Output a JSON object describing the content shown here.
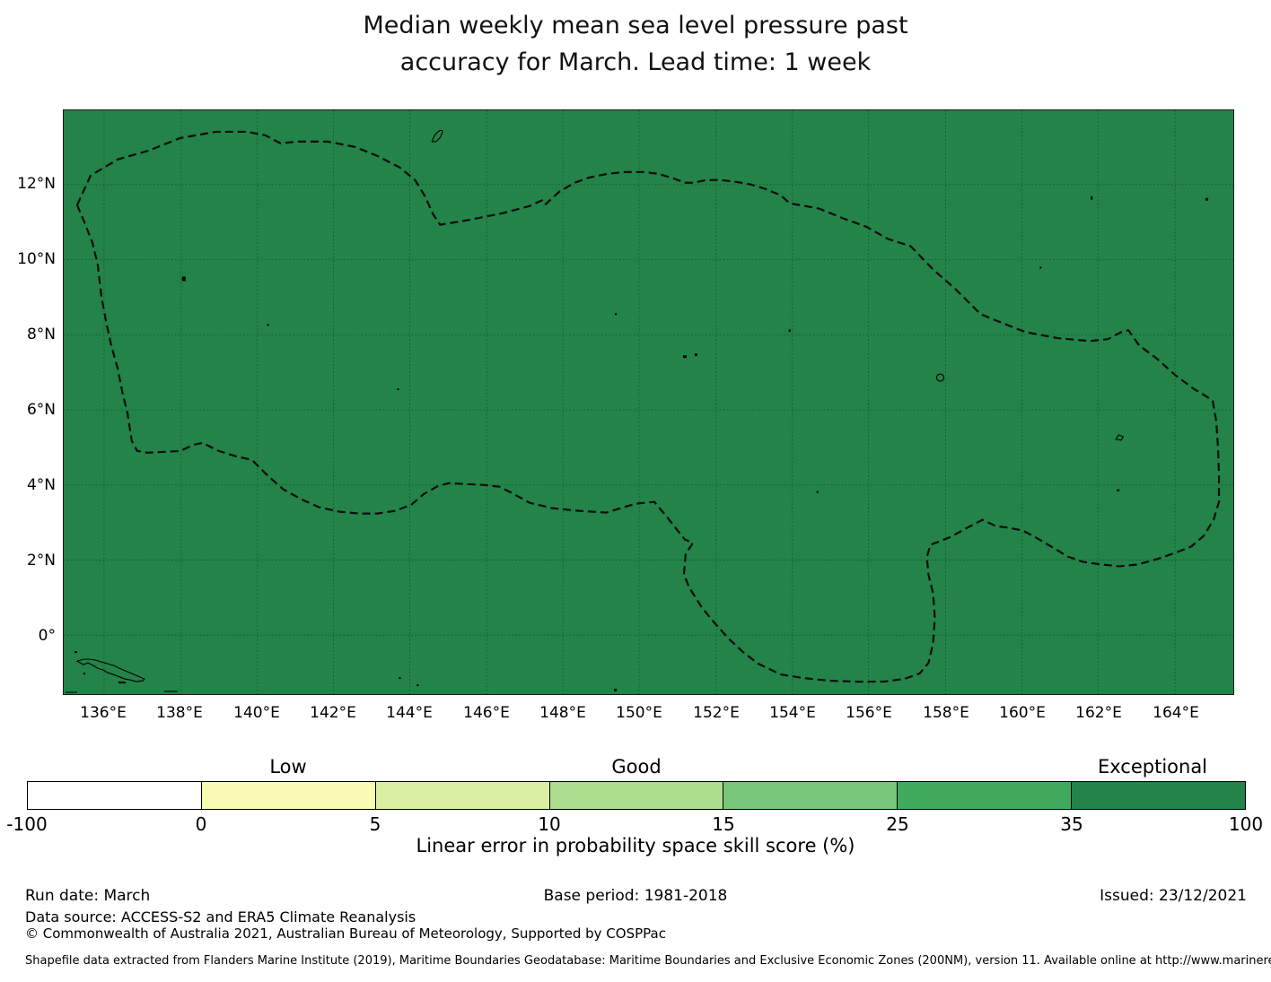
{
  "title": {
    "line1": "Median weekly mean sea level pressure past",
    "line2": "accuracy for March. Lead time: 1 week"
  },
  "map": {
    "x_tick_labels": [
      "136°E",
      "138°E",
      "140°E",
      "142°E",
      "144°E",
      "146°E",
      "148°E",
      "150°E",
      "152°E",
      "154°E",
      "156°E",
      "158°E",
      "160°E",
      "162°E",
      "164°E"
    ],
    "y_tick_labels": [
      "12°N",
      "10°N",
      "8°N",
      "6°N",
      "4°N",
      "2°N",
      "0°"
    ],
    "fill_color": "#238348"
  },
  "colorbar": {
    "category_labels": [
      "Low",
      "Good",
      "Exceptional"
    ],
    "tick_labels": [
      "-100",
      "0",
      "5",
      "10",
      "15",
      "25",
      "35",
      "100"
    ],
    "segment_colors": [
      "#ffffff",
      "#f7fbb4",
      "#d9f0a3",
      "#addd8e",
      "#78c679",
      "#41ab5d",
      "#238348"
    ],
    "axis_label": "Linear error in probability space skill score (%)"
  },
  "footer": {
    "run_date": "Run date: March",
    "base_period": "Base period: 1981-2018",
    "issued": "Issued: 23/12/2021",
    "data_source": "Data source: ACCESS-S2 and ERA5 Climate Reanalysis",
    "copyright": "© Commonwealth of Australia 2021, Australian Bureau of Meteorology, Supported by COSPPac",
    "shapefile_note": "Shapefile data extracted from Flanders Marine Institute (2019), Maritime Boundaries Geodatabase: Maritime Boundaries and Exclusive Economic Zones (200NM), version 11. Available online at http://www.marineregions.org/."
  },
  "chart_data": {
    "type": "heatmap",
    "title": "Median weekly mean sea level pressure past accuracy for March. Lead time: 1 week",
    "colorbar_label": "Linear error in probability space skill score (%)",
    "colorbar_bin_edges": [
      -100,
      0,
      5,
      10,
      15,
      25,
      35,
      100
    ],
    "colorbar_bin_colors": [
      "#ffffff",
      "#f7fbb4",
      "#d9f0a3",
      "#addd8e",
      "#78c679",
      "#41ab5d",
      "#238348"
    ],
    "colorbar_categories": [
      {
        "label": "Low",
        "over_bin": "0-5"
      },
      {
        "label": "Good",
        "over_bin": "10-15"
      },
      {
        "label": "Exceptional",
        "over_bin": "35-100"
      }
    ],
    "x_axis": {
      "tick_labels": [
        "136°E",
        "138°E",
        "140°E",
        "142°E",
        "144°E",
        "146°E",
        "148°E",
        "150°E",
        "152°E",
        "154°E",
        "156°E",
        "158°E",
        "160°E",
        "162°E",
        "164°E"
      ],
      "approx_range_deg_east": [
        134.9,
        165.6
      ]
    },
    "y_axis": {
      "tick_labels": [
        "12°N",
        "10°N",
        "8°N",
        "6°N",
        "4°N",
        "2°N",
        "0°"
      ],
      "approx_range_deg_north": [
        -1.6,
        14.0
      ]
    },
    "field_values": "Entire mapped ocean region is a single uniform shade in the 35–100 (Exceptional) bin",
    "overlays": [
      "dashed exclusive-economic-zone boundary polygon",
      "thin black island coastlines and small island dots",
      "2° × 2° graticule grid"
    ],
    "legend_position": "horizontal colorbar below map",
    "grid": true
  }
}
